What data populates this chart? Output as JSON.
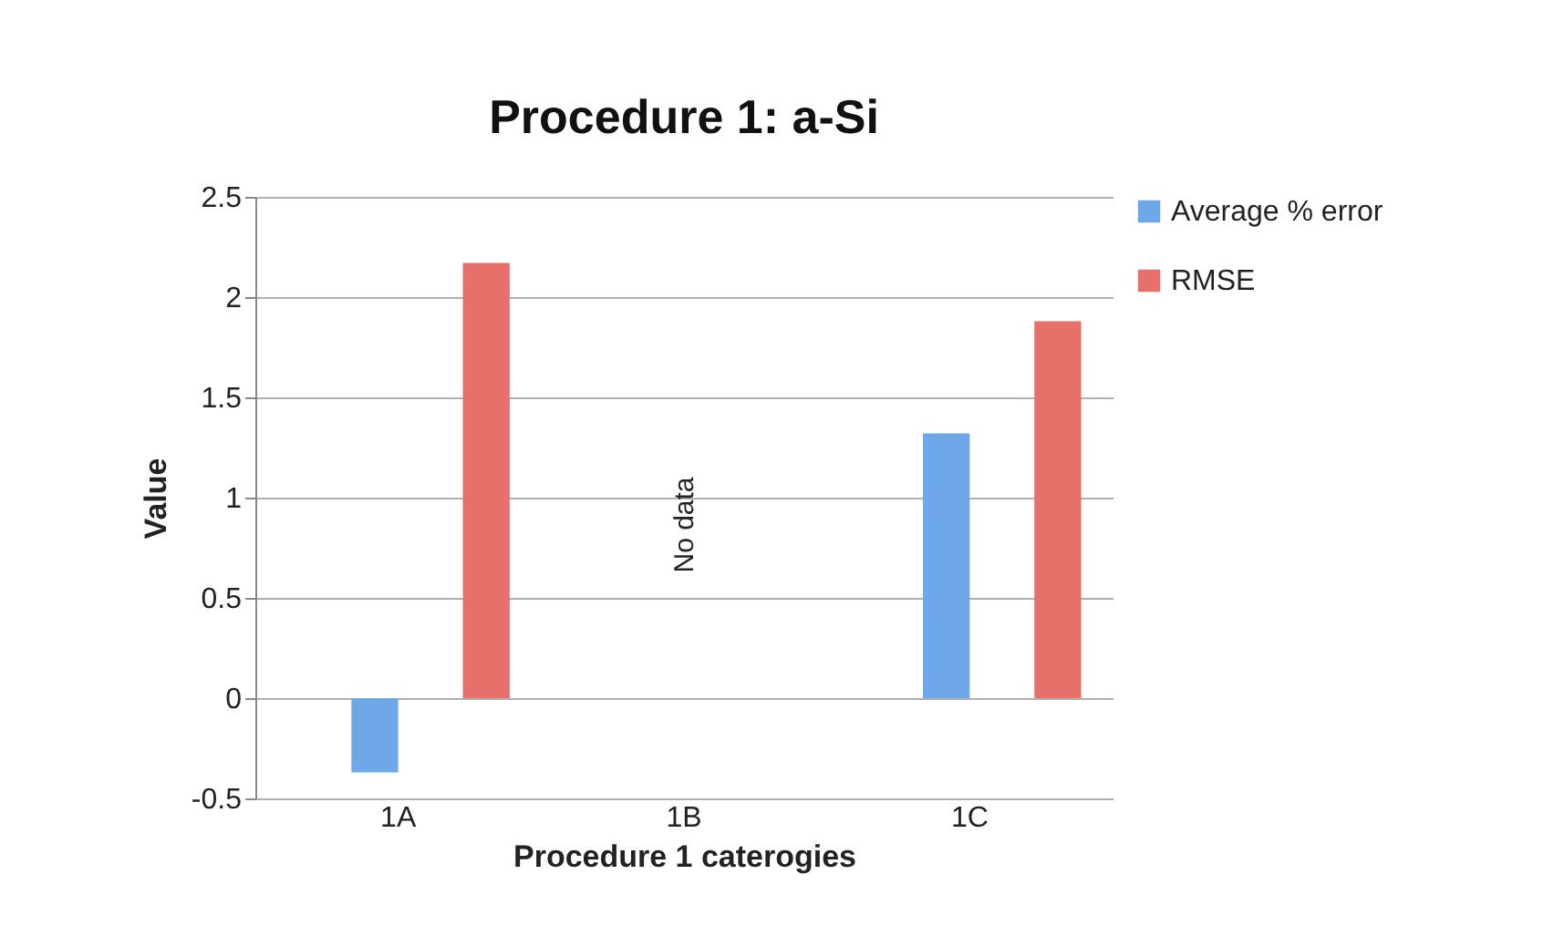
{
  "chart_data": {
    "type": "bar",
    "title": "Procedure 1: a-Si",
    "xlabel": "Procedure 1 caterogies",
    "ylabel": "Value",
    "categories": [
      "1A",
      "1B",
      "1C"
    ],
    "series": [
      {
        "name": "Average % error",
        "color": "#6fa8e8",
        "values": [
          -0.37,
          null,
          1.32
        ]
      },
      {
        "name": "RMSE",
        "color": "#e8706b",
        "values": [
          2.17,
          null,
          1.88
        ]
      }
    ],
    "ylim": [
      -0.5,
      2.5
    ],
    "yticks": [
      -0.5,
      0,
      0.5,
      1,
      1.5,
      2,
      2.5
    ],
    "grid": "y",
    "legend": "right",
    "annotations": [
      "No data"
    ]
  }
}
